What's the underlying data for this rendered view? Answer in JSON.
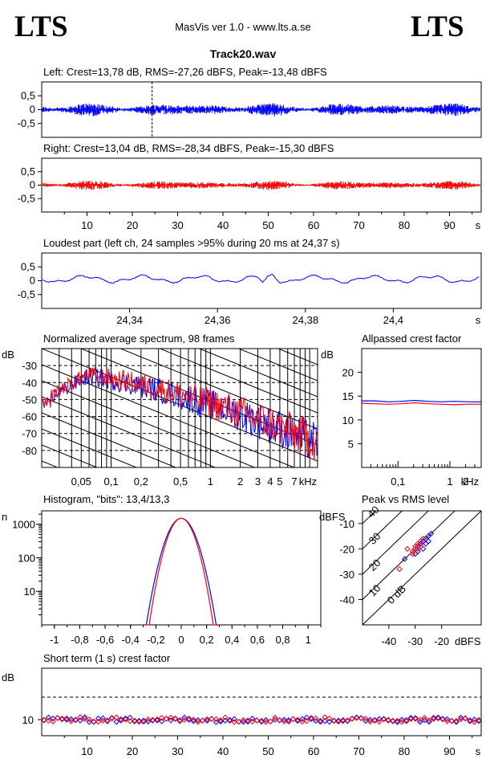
{
  "header": {
    "logo_left": "LTS",
    "logo_right": "LTS",
    "app_title": "MasVis ver 1.0 - www.lts.a.se",
    "file_name": "Track20.wav"
  },
  "colors": {
    "left": "#0000ff",
    "right": "#ff0000",
    "axis": "#000000"
  },
  "chart_data": [
    {
      "type": "line",
      "title": "Left: Crest=13,78 dB, RMS=-27,26 dBFS, Peak=-13,48 dBFS",
      "channel": "left",
      "ylim": [
        -1,
        1
      ],
      "yticks": [
        "0,5",
        "0",
        "-0,5"
      ],
      "marker_at_s": 24.37,
      "crest_db": 13.78,
      "rms_dbfs": -27.26,
      "peak_dbfs": -13.48
    },
    {
      "type": "line",
      "title": "Right: Crest=13,04 dB, RMS=-28,34 dBFS, Peak=-15,30 dBFS",
      "channel": "right",
      "ylim": [
        -1,
        1
      ],
      "yticks": [
        "0,5",
        "0",
        "-0,5"
      ],
      "xticks": [
        "10",
        "20",
        "30",
        "40",
        "50",
        "60",
        "70",
        "80",
        "90"
      ],
      "xunit": "s",
      "xlim": [
        0,
        97
      ],
      "crest_db": 13.04,
      "rms_dbfs": -28.34,
      "peak_dbfs": -15.3
    },
    {
      "type": "line",
      "title": "Loudest part (left  ch, 24 samples >95% during 20 ms at 24,37 s)",
      "yticks": [
        "0,5",
        "0",
        "-0,5"
      ],
      "xticks": [
        "24,34",
        "24,36",
        "24,38",
        "24,4"
      ],
      "xunit": "s",
      "xlim": [
        24.32,
        24.42
      ]
    },
    {
      "type": "line",
      "title": "Normalized average spectrum, 98 frames",
      "ylabel": "dB",
      "yticks": [
        "-30",
        "-40",
        "-50",
        "-60",
        "-70",
        "-80"
      ],
      "ylim": [
        -90,
        -20
      ],
      "xticks": [
        "0,05",
        "0,1",
        "0,2",
        "0,5",
        "1",
        "2",
        "3",
        "4",
        "5",
        "7"
      ],
      "xunit": "kHz",
      "xscale": "log",
      "series": [
        {
          "channel": "left"
        },
        {
          "channel": "right"
        }
      ]
    },
    {
      "type": "line",
      "title": "Allpassed crest factor",
      "ylabel": "dB",
      "yticks": [
        "20",
        "15",
        "10",
        "5"
      ],
      "ylim": [
        0,
        25
      ],
      "xticks": [
        "0,1",
        "1",
        "2"
      ],
      "xunit": "kHz",
      "series": [
        {
          "channel": "left",
          "values_db": [
            14.0,
            14.0,
            13.8,
            13.9,
            14.1,
            13.9,
            13.8,
            13.9,
            13.8,
            13.8
          ]
        },
        {
          "channel": "right",
          "values_db": [
            13.5,
            13.4,
            13.3,
            13.4,
            13.6,
            13.4,
            13.3,
            13.2,
            13.3,
            13.3
          ]
        }
      ]
    },
    {
      "type": "line",
      "title": "Histogram, \"bits\": 13,4/13,3",
      "ylabel": "n",
      "yscale": "log",
      "yticks": [
        "1000",
        "100",
        "10"
      ],
      "xticks": [
        "-1",
        "-0,8",
        "-0,6",
        "-0,4",
        "-0,2",
        "0",
        "0,2",
        "0,4",
        "0,6",
        "0,8",
        "1"
      ],
      "xlim": [
        -1.1,
        1.1
      ],
      "series": [
        {
          "channel": "left"
        },
        {
          "channel": "right"
        }
      ]
    },
    {
      "type": "scatter",
      "title": "Peak vs RMS level",
      "ylabel": "dBFS",
      "yticks": [
        "-10",
        "-20",
        "-30",
        "-40"
      ],
      "ylim": [
        -50,
        -5
      ],
      "xticks": [
        "-40",
        "-30",
        "-20"
      ],
      "xlabel": "dBFS",
      "xlim": [
        -50,
        -5
      ],
      "diagonal_labels": [
        "40",
        "30",
        "20",
        "10",
        "0 dB"
      ],
      "series": [
        {
          "channel": "left",
          "points": [
            [
              -34,
              -24
            ],
            [
              -30,
              -22
            ],
            [
              -29,
              -19
            ],
            [
              -28,
              -18
            ],
            [
              -27,
              -17
            ],
            [
              -26,
              -16
            ],
            [
              -25,
              -15
            ],
            [
              -27,
              -20
            ],
            [
              -29,
              -21
            ],
            [
              -26,
              -18
            ],
            [
              -24,
              -14
            ],
            [
              -25,
              -17
            ]
          ]
        },
        {
          "channel": "right",
          "points": [
            [
              -36,
              -28
            ],
            [
              -33,
              -20
            ],
            [
              -31,
              -22
            ],
            [
              -30,
              -20
            ],
            [
              -29,
              -18
            ],
            [
              -28,
              -17
            ],
            [
              -30,
              -19
            ],
            [
              -27,
              -16
            ],
            [
              -28,
              -19
            ],
            [
              -31,
              -21
            ],
            [
              -29,
              -20
            ]
          ]
        }
      ]
    },
    {
      "type": "scatter",
      "title": "Short term (1 s) crest factor",
      "ylabel": "dB",
      "yticks": [
        "10"
      ],
      "reference_line_db": 20,
      "xticks": [
        "10",
        "20",
        "30",
        "40",
        "50",
        "60",
        "70",
        "80",
        "90"
      ],
      "xunit": "s",
      "xlim": [
        0,
        97
      ],
      "series": [
        {
          "channel": "left"
        },
        {
          "channel": "right"
        }
      ]
    }
  ]
}
